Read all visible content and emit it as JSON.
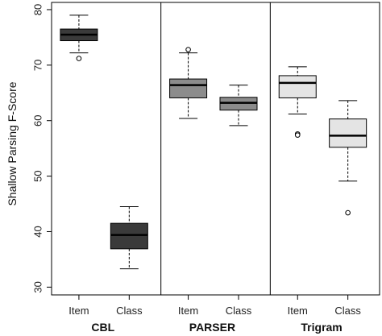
{
  "chart_data": {
    "type": "boxplot",
    "ylabel": "Shallow Parsing F-Score",
    "ylim": [
      30,
      80
    ],
    "yticks": [
      30,
      40,
      50,
      60,
      70,
      80
    ],
    "grid": false,
    "groups": [
      {
        "name": "CBL",
        "boxes": [
          {
            "label": "Item",
            "whisker_low": 72.2,
            "q1": 74.4,
            "median": 75.5,
            "q3": 76.5,
            "whisker_high": 79.0,
            "outliers": [
              71.2
            ],
            "fill": "#3a3a3a"
          },
          {
            "label": "Class",
            "whisker_low": 33.3,
            "q1": 36.9,
            "median": 39.4,
            "q3": 41.5,
            "whisker_high": 44.5,
            "outliers": [],
            "fill": "#3a3a3a"
          }
        ]
      },
      {
        "name": "PARSER",
        "boxes": [
          {
            "label": "Item",
            "whisker_low": 60.4,
            "q1": 64.1,
            "median": 66.4,
            "q3": 67.5,
            "whisker_high": 72.2,
            "outliers": [
              72.8
            ],
            "fill": "#8c8c8c"
          },
          {
            "label": "Class",
            "whisker_low": 59.1,
            "q1": 61.9,
            "median": 63.2,
            "q3": 64.2,
            "whisker_high": 66.4,
            "outliers": [],
            "fill": "#8c8c8c"
          }
        ]
      },
      {
        "name": "Trigram",
        "boxes": [
          {
            "label": "Item",
            "whisker_low": 61.2,
            "q1": 64.1,
            "median": 66.8,
            "q3": 68.1,
            "whisker_high": 69.7,
            "outliers": [
              57.6,
              57.4
            ],
            "fill": "#e4e4e4"
          },
          {
            "label": "Class",
            "whisker_low": 49.1,
            "q1": 55.2,
            "median": 57.3,
            "q3": 60.3,
            "whisker_high": 63.6,
            "outliers": [
              43.4
            ],
            "fill": "#e4e4e4"
          }
        ]
      }
    ]
  }
}
